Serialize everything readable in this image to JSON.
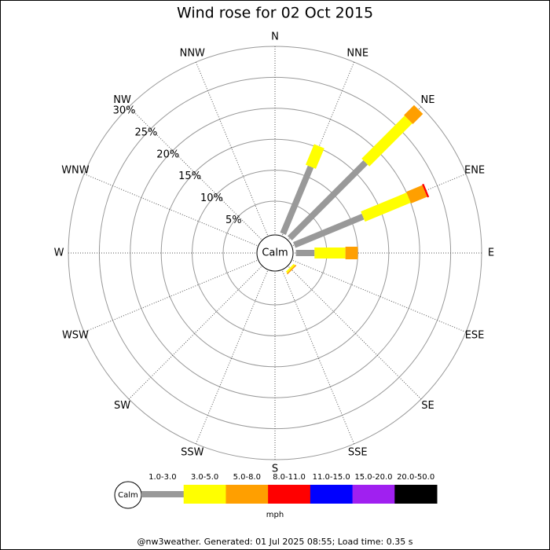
{
  "chart_data": {
    "type": "windrose",
    "title": "Wind rose for 02 Oct 2015",
    "directions": [
      "N",
      "NNE",
      "NE",
      "ENE",
      "E",
      "ESE",
      "SE",
      "SSE",
      "S",
      "SSW",
      "SW",
      "WSW",
      "W",
      "WNW",
      "NW",
      "NNW"
    ],
    "series": [
      {
        "name": "1.0-3.0",
        "color": "#999999",
        "values": [
          0,
          11.7,
          17.3,
          12,
          3,
          0,
          0,
          0,
          0,
          0,
          0,
          0,
          0,
          0,
          0,
          0
        ]
      },
      {
        "name": "3.0-5.0",
        "color": "#ffff00",
        "values": [
          0,
          3.6,
          9.8,
          8,
          5,
          0,
          0.3,
          0,
          0,
          0,
          0,
          0,
          0,
          0,
          0,
          0
        ]
      },
      {
        "name": "5.0-8.0",
        "color": "#ff9f00",
        "values": [
          0,
          0,
          2.3,
          2.8,
          2,
          0,
          0.2,
          0,
          0,
          0,
          0,
          0,
          0,
          0,
          0,
          0
        ]
      },
      {
        "name": "8.0-11.0",
        "color": "#ff0000",
        "values": [
          0,
          0,
          0,
          0.3,
          0,
          0,
          0,
          0,
          0,
          0,
          0,
          0,
          0,
          0,
          0,
          0
        ]
      },
      {
        "name": "11.0-15.0",
        "color": "#0000ff",
        "values": [
          0,
          0,
          0,
          0,
          0,
          0,
          0,
          0,
          0,
          0,
          0,
          0,
          0,
          0,
          0,
          0
        ]
      },
      {
        "name": "15.0-20.0",
        "color": "#a020f0",
        "values": [
          0,
          0,
          0,
          0,
          0,
          0,
          0,
          0,
          0,
          0,
          0,
          0,
          0,
          0,
          0,
          0
        ]
      },
      {
        "name": "20.0-50.0",
        "color": "#000000",
        "values": [
          0,
          0,
          0,
          0,
          0,
          0,
          0,
          0,
          0,
          0,
          0,
          0,
          0,
          0,
          0,
          0
        ]
      }
    ],
    "rlim": [
      0,
      30
    ],
    "rticks": [
      {
        "value": 5,
        "label": "5%"
      },
      {
        "value": 10,
        "label": "10%"
      },
      {
        "value": 15,
        "label": "15%"
      },
      {
        "value": 20,
        "label": "20%"
      },
      {
        "value": 25,
        "label": "25%"
      },
      {
        "value": 30,
        "label": "30%"
      }
    ],
    "calm_label": "Calm",
    "unit": "mph"
  },
  "footer": "@nw3weather. Generated: 01 Jul 2025 08:55; Load time: 0.35 s"
}
